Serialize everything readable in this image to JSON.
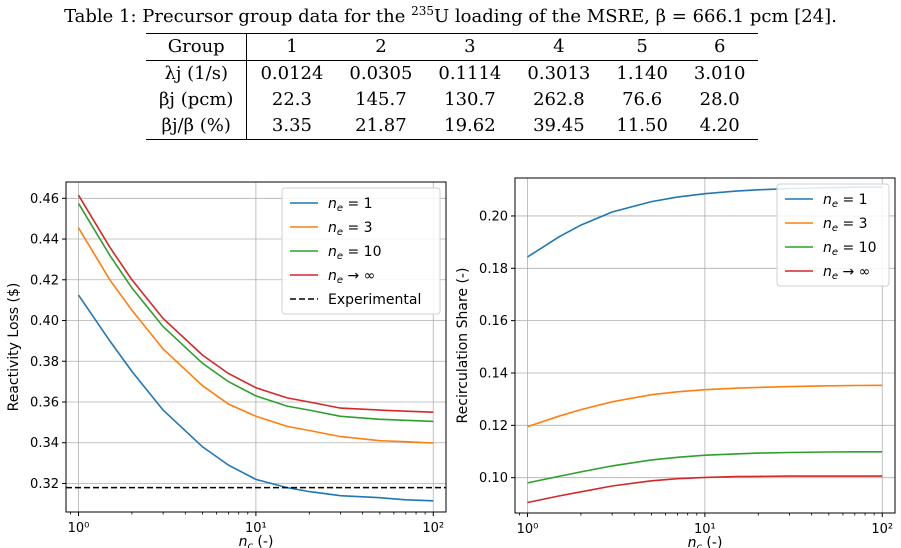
{
  "caption": {
    "prefix": "Table 1: Precursor group data for the ",
    "isotope_mass": "235",
    "suffix": "U loading of the MSRE, β = 666.1 pcm [24]."
  },
  "table": {
    "header": [
      "Group",
      "1",
      "2",
      "3",
      "4",
      "5",
      "6"
    ],
    "rows": [
      [
        "λj (1/s)",
        "0.0124",
        "0.0305",
        "0.1114",
        "0.3013",
        "1.140",
        "3.010"
      ],
      [
        "βj (pcm)",
        "22.3",
        "145.7",
        "130.7",
        "262.8",
        "76.6",
        "28.0"
      ],
      [
        "βj/β (%)",
        "3.35",
        "21.87",
        "19.62",
        "39.45",
        "11.50",
        "4.20"
      ]
    ]
  },
  "chart_data": [
    {
      "type": "line",
      "title": "",
      "xlabel": "nc (-)",
      "ylabel": "Reactivity Loss ($)",
      "xscale": "log",
      "xlim": [
        0.85,
        118
      ],
      "ylim": [
        0.306,
        0.468
      ],
      "xticks": [
        1,
        10,
        100
      ],
      "xtick_labels": [
        "10⁰",
        "10¹",
        "10²"
      ],
      "yticks": [
        0.32,
        0.34,
        0.36,
        0.38,
        0.4,
        0.42,
        0.44,
        0.46
      ],
      "ytick_labels": [
        "0.32",
        "0.34",
        "0.36",
        "0.38",
        "0.40",
        "0.42",
        "0.44",
        "0.46"
      ],
      "grid": true,
      "legend": "top-right",
      "series": [
        {
          "name": "ne = 1",
          "color": "#1f77b4",
          "x": [
            1,
            1.5,
            2,
            3,
            5,
            7,
            10,
            15,
            20,
            30,
            50,
            70,
            100
          ],
          "y": [
            0.4125,
            0.39,
            0.375,
            0.356,
            0.338,
            0.329,
            0.322,
            0.318,
            0.316,
            0.314,
            0.313,
            0.312,
            0.3115
          ]
        },
        {
          "name": "ne = 3",
          "color": "#ff7f0e",
          "x": [
            1,
            1.5,
            2,
            3,
            5,
            7,
            10,
            15,
            20,
            30,
            50,
            70,
            100
          ],
          "y": [
            0.4455,
            0.42,
            0.405,
            0.386,
            0.368,
            0.359,
            0.353,
            0.348,
            0.346,
            0.343,
            0.341,
            0.3405,
            0.3398
          ]
        },
        {
          "name": "ne = 10",
          "color": "#2ca02c",
          "x": [
            1,
            1.5,
            2,
            3,
            5,
            7,
            10,
            15,
            20,
            30,
            50,
            70,
            100
          ],
          "y": [
            0.4575,
            0.432,
            0.416,
            0.397,
            0.379,
            0.37,
            0.363,
            0.358,
            0.356,
            0.353,
            0.3515,
            0.351,
            0.3505
          ]
        },
        {
          "name": "ne → ∞",
          "color": "#d62728",
          "x": [
            1,
            1.5,
            2,
            3,
            5,
            7,
            10,
            15,
            20,
            30,
            50,
            70,
            100
          ],
          "y": [
            0.4615,
            0.436,
            0.42,
            0.401,
            0.383,
            0.374,
            0.367,
            0.362,
            0.36,
            0.357,
            0.356,
            0.3555,
            0.355
          ]
        },
        {
          "name": "Experimental",
          "color": "#000000",
          "dashed": true,
          "x": [
            0.85,
            118
          ],
          "y": [
            0.318,
            0.318
          ]
        }
      ]
    },
    {
      "type": "line",
      "title": "",
      "xlabel": "nc (-)",
      "ylabel": "Recirculation Share (-)",
      "xscale": "log",
      "xlim": [
        0.85,
        118
      ],
      "ylim": [
        0.0865,
        0.2145
      ],
      "xticks": [
        1,
        10,
        100
      ],
      "xtick_labels": [
        "10⁰",
        "10¹",
        "10²"
      ],
      "yticks": [
        0.1,
        0.12,
        0.14,
        0.16,
        0.18,
        0.2
      ],
      "ytick_labels": [
        "0.10",
        "0.12",
        "0.14",
        "0.16",
        "0.18",
        "0.20"
      ],
      "grid": true,
      "legend": "top-right",
      "series": [
        {
          "name": "ne = 1",
          "color": "#1f77b4",
          "x": [
            1,
            1.5,
            2,
            3,
            5,
            7,
            10,
            15,
            20,
            30,
            50,
            70,
            100
          ],
          "y": [
            0.1843,
            0.192,
            0.1965,
            0.2015,
            0.2055,
            0.2072,
            0.2085,
            0.2095,
            0.21,
            0.2105,
            0.2108,
            0.211,
            0.2111
          ]
        },
        {
          "name": "ne = 3",
          "color": "#ff7f0e",
          "x": [
            1,
            1.5,
            2,
            3,
            5,
            7,
            10,
            15,
            20,
            30,
            50,
            70,
            100
          ],
          "y": [
            0.1195,
            0.1235,
            0.126,
            0.129,
            0.1317,
            0.1328,
            0.1336,
            0.1342,
            0.1345,
            0.1348,
            0.1351,
            0.1352,
            0.1353
          ]
        },
        {
          "name": "ne = 10",
          "color": "#2ca02c",
          "x": [
            1,
            1.5,
            2,
            3,
            5,
            7,
            10,
            15,
            20,
            30,
            50,
            70,
            100
          ],
          "y": [
            0.098,
            0.1005,
            0.1022,
            0.1045,
            0.1068,
            0.1078,
            0.1086,
            0.1091,
            0.1094,
            0.1096,
            0.1098,
            0.1099,
            0.1099
          ]
        },
        {
          "name": "ne → ∞",
          "color": "#d62728",
          "x": [
            1,
            1.5,
            2,
            3,
            5,
            7,
            10,
            15,
            20,
            30,
            50,
            70,
            100
          ],
          "y": [
            0.0905,
            0.093,
            0.0946,
            0.0968,
            0.0988,
            0.0996,
            0.1001,
            0.1004,
            0.1005,
            0.1006,
            0.1006,
            0.1006,
            0.1006
          ]
        }
      ]
    }
  ]
}
